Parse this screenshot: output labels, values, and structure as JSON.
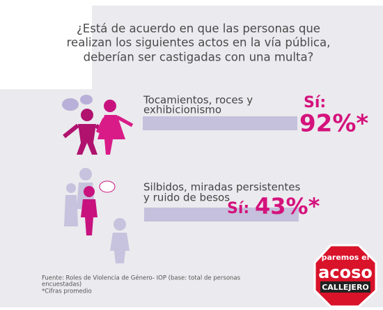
{
  "title": [
    "¿Está de acuerdo en que las personas que",
    "realizan los siguientes actos en la vía pública,",
    "deberían ser castigadas con una multa?"
  ],
  "items": [
    {
      "label": [
        "Tocamientos, roces y",
        "exhibicionismo"
      ],
      "answer": "Sí:",
      "value": "92%*"
    },
    {
      "label": [
        "Silbidos, miradas persistentes",
        "y ruido de besos"
      ],
      "answer": "Sí:",
      "value": "43%*"
    }
  ],
  "footer": {
    "source": [
      "Fuente: Roles de Violencia de Género- IOP (base: total de personas",
      "encuestadas)"
    ],
    "note": "*Cifras promedio"
  },
  "logo": {
    "top": "paremos el",
    "middle": "acoso",
    "bottom": "CALLEJERO"
  }
}
